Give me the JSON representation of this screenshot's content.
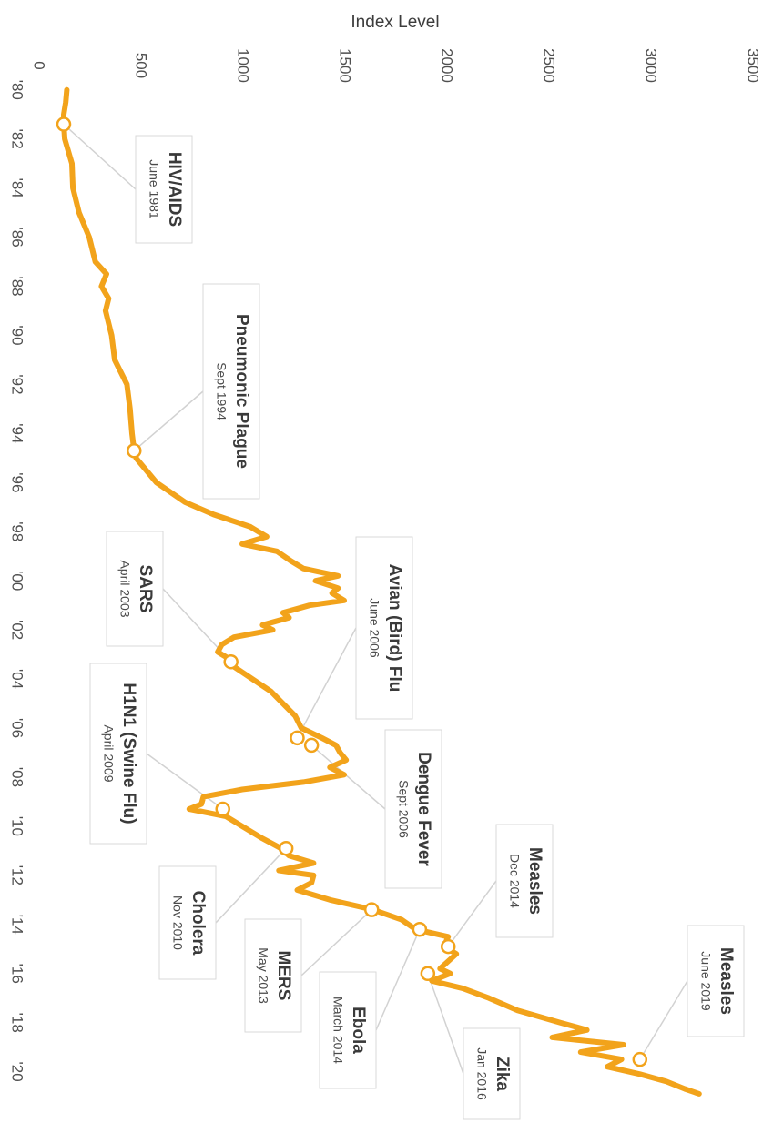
{
  "chart_data": {
    "type": "line",
    "title": "",
    "ylabel": "Index Level",
    "ylim": [
      0,
      3500
    ],
    "y_ticks": [
      0,
      500,
      1000,
      1500,
      2000,
      2500,
      3000,
      3500
    ],
    "x_ticks": [
      1980,
      1982,
      1984,
      1986,
      1988,
      1990,
      1992,
      1994,
      1996,
      1998,
      2000,
      2002,
      2004,
      2006,
      2008,
      2010,
      2012,
      2014,
      2016,
      2018,
      2020
    ],
    "x_tick_labels": [
      "'80",
      "'82",
      "'84",
      "'86",
      "'88",
      "'90",
      "'92",
      "'94",
      "'96",
      "'98",
      "'00",
      "'02",
      "'04",
      "'06",
      "'08",
      "'10",
      "'12",
      "'14",
      "'16",
      "'18",
      "'20"
    ],
    "xlim": [
      1979.6,
      2021.2
    ],
    "line_color": "#f2a31b",
    "series": [
      {
        "x": [
          1980.0,
          1980.5,
          1981.0,
          1981.4,
          1982.0,
          1983.0,
          1984.0,
          1985.0,
          1986.0,
          1987.0,
          1987.5,
          1988.0,
          1988.5,
          1989.0,
          1990.0,
          1991.0,
          1992.0,
          1993.0,
          1994.0,
          1994.7,
          1995.0,
          1996.0,
          1996.8,
          1997.3,
          1997.8,
          1998.2,
          1998.5,
          1998.8,
          1999.2,
          1999.5,
          1999.8,
          2000.0,
          2000.3,
          2000.5,
          2000.8,
          2001.0,
          2001.3,
          2001.5,
          2001.8,
          2002.0,
          2002.3,
          2002.6,
          2002.9,
          2003.2,
          2003.5,
          2004.0,
          2004.5,
          2005.0,
          2005.5,
          2006.0,
          2006.4,
          2006.7,
          2007.0,
          2007.3,
          2007.6,
          2007.9,
          2008.2,
          2008.5,
          2008.8,
          2009.1,
          2009.3,
          2009.6,
          2010.0,
          2010.5,
          2010.9,
          2011.2,
          2011.5,
          2011.8,
          2012.0,
          2012.3,
          2012.6,
          2013.0,
          2013.4,
          2013.8,
          2014.2,
          2014.5,
          2014.9,
          2015.2,
          2015.5,
          2015.8,
          2016.0,
          2016.3,
          2016.6,
          2017.0,
          2017.5,
          2018.0,
          2018.3,
          2018.6,
          2018.9,
          2019.2,
          2019.5,
          2019.8,
          2020.1,
          2020.4,
          2020.7,
          2020.9
        ],
        "y": [
          140,
          135,
          125,
          125,
          130,
          165,
          170,
          200,
          250,
          280,
          335,
          310,
          345,
          330,
          360,
          375,
          435,
          450,
          460,
          470,
          480,
          580,
          720,
          860,
          1040,
          1120,
          1000,
          1170,
          1240,
          1300,
          1470,
          1360,
          1470,
          1440,
          1500,
          1330,
          1200,
          1230,
          1100,
          1150,
          960,
          900,
          880,
          940,
          960,
          1050,
          1140,
          1200,
          1260,
          1290,
          1390,
          1460,
          1480,
          1510,
          1430,
          1500,
          1300,
          1000,
          810,
          800,
          740,
          920,
          1000,
          1100,
          1190,
          1230,
          1350,
          1180,
          1350,
          1340,
          1270,
          1430,
          1640,
          1780,
          1850,
          2010,
          1990,
          2050,
          2010,
          1970,
          2020,
          1930,
          2080,
          2210,
          2350,
          2560,
          2690,
          2520,
          2870,
          2660,
          2860,
          2790,
          2950,
          3080,
          3170,
          3240
        ]
      }
    ],
    "annotations": [
      {
        "name": "HIV/AIDS",
        "date": "June 1981",
        "x": 1981.4,
        "y": 125
      },
      {
        "name": "Pneumonic Plague",
        "date": "Sept 1994",
        "x": 1994.7,
        "y": 470
      },
      {
        "name": "SARS",
        "date": "April 2003",
        "x": 2003.3,
        "y": 945
      },
      {
        "name": "Avian (Bird) Flu",
        "date": "June 2006",
        "x": 2006.4,
        "y": 1270
      },
      {
        "name": "Dengue Fever",
        "date": "Sept 2006",
        "x": 2006.7,
        "y": 1340
      },
      {
        "name": "H1N1 (Swine Flu)",
        "date": "April 2009",
        "x": 2009.3,
        "y": 905
      },
      {
        "name": "Cholera",
        "date": "Nov 2010",
        "x": 2010.9,
        "y": 1215
      },
      {
        "name": "MERS",
        "date": "May 2013",
        "x": 2013.4,
        "y": 1635
      },
      {
        "name": "Ebola",
        "date": "March 2014",
        "x": 2014.2,
        "y": 1870
      },
      {
        "name": "Measles",
        "date": "Dec 2014",
        "x": 2014.9,
        "y": 2010
      },
      {
        "name": "Zika",
        "date": "Jan 2016",
        "x": 2016.0,
        "y": 1910
      },
      {
        "name": "Measles",
        "date": "June 2019",
        "x": 2019.5,
        "y": 2950
      }
    ]
  }
}
